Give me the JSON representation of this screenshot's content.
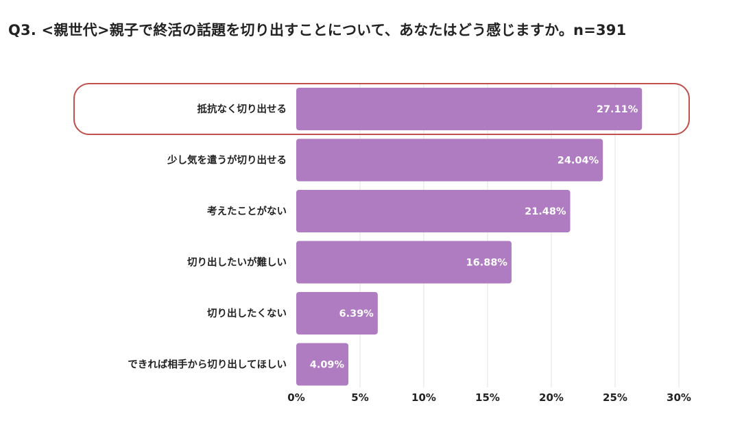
{
  "header": {
    "title": "Q3. <親世代>親子で終活の話題を切り出すことについて、あなたはどう感じますか。n=391"
  },
  "colors": {
    "bar": "#b07cc1",
    "highlight_outline": "#c0504d",
    "grid": "#e2e2e2"
  },
  "chart_data": {
    "type": "bar",
    "orientation": "horizontal",
    "categories": [
      "抵抗なく切り出せる",
      "少し気を遣うが切り出せる",
      "考えたことがない",
      "切り出したいが難しい",
      "切り出したくない",
      "できれば相手から切り出してほしい"
    ],
    "values": [
      27.11,
      24.04,
      21.48,
      16.88,
      6.39,
      4.09
    ],
    "value_labels": [
      "27.11%",
      "24.04%",
      "21.48%",
      "16.88%",
      "6.39%",
      "4.09%"
    ],
    "xlim": [
      0,
      30
    ],
    "x_ticks": [
      0,
      5,
      10,
      15,
      20,
      25,
      30
    ],
    "x_tick_labels": [
      "0%",
      "5%",
      "10%",
      "15%",
      "20%",
      "25%",
      "30%"
    ],
    "grid": true,
    "highlighted_category_index": 0
  }
}
